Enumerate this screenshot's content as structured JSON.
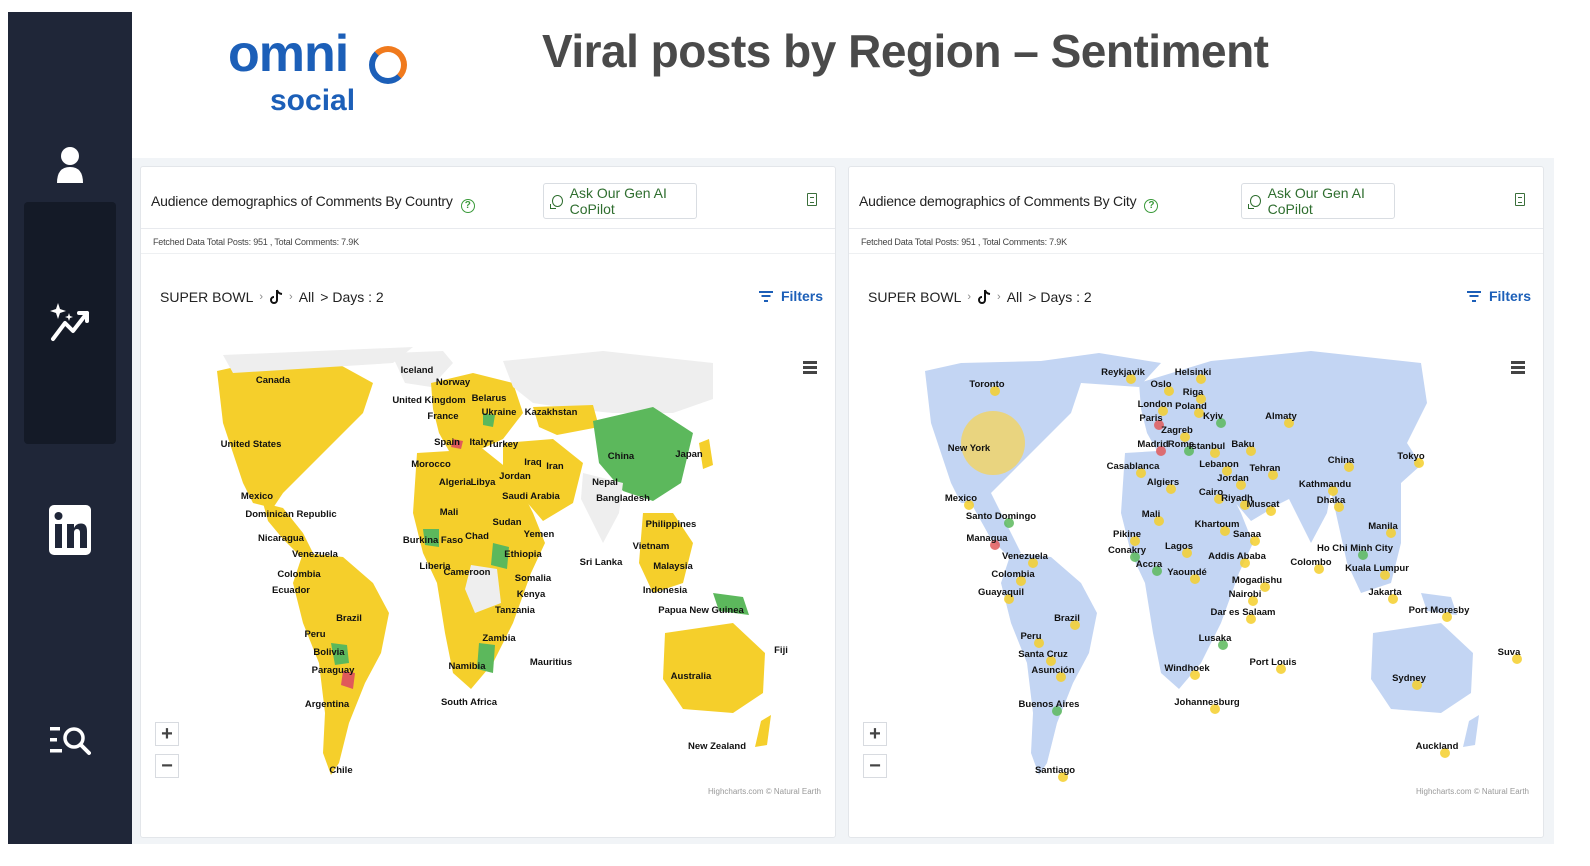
{
  "page": {
    "title": "Viral posts by Region – Sentiment",
    "logo_top": "omni",
    "logo_bottom": "social"
  },
  "sidebar": {
    "items": [
      {
        "name": "user",
        "icon": "user-icon"
      },
      {
        "name": "analytics",
        "icon": "sparkle-chart-icon",
        "active": true
      },
      {
        "name": "linkedin",
        "icon": "linkedin-icon"
      },
      {
        "name": "search-list",
        "icon": "list-search-icon"
      }
    ]
  },
  "colors": {
    "sidebar": "#1f2638",
    "positive": "#5cb85c",
    "neutral": "#f5cf2b",
    "negative": "#e05a5a",
    "no_data": "#eeeeee",
    "city_land": "#c3d5f3",
    "accent": "#1c5fb8"
  },
  "panels": {
    "country": {
      "title": "Audience demographics of Comments By Country",
      "copilot_label": "Ask Our Gen AI CoPilot",
      "fetched": "Fetched Data Total Posts: 951 , Total Comments: 7.9K",
      "crumb_event": "SUPER BOWL",
      "crumb_scope": "All",
      "crumb_days": "> Days : 2",
      "filters_label": "Filters",
      "zoom_in": "+",
      "zoom_out": "−",
      "credits": "Highcharts.com © Natural Earth",
      "labels": [
        "Canada",
        "Iceland",
        "Norway",
        "United Kingdom",
        "Belarus",
        "France",
        "Ukraine",
        "Kazakhstan",
        "United States",
        "Spain",
        "Italy",
        "Turkey",
        "China",
        "Japan",
        "Morocco",
        "Iraq",
        "Iran",
        "Algeria",
        "Libya",
        "Jordan",
        "Nepal",
        "Mexico",
        "Saudi Arabia",
        "Bangladesh",
        "Dominican Republic",
        "Mali",
        "Sudan",
        "Philippines",
        "Nicaragua",
        "Burkina Faso",
        "Chad",
        "Yemen",
        "Venezuela",
        "Vietnam",
        "Liberia",
        "Cameroon",
        "Ethiopia",
        "Sri Lanka",
        "Malaysia",
        "Colombia",
        "Somalia",
        "Ecuador",
        "Kenya",
        "Indonesia",
        "Tanzania",
        "Papua New Guinea",
        "Brazil",
        "Peru",
        "Zambia",
        "Bolivia",
        "Mauritius",
        "Fiji",
        "Namibia",
        "Paraguay",
        "Australia",
        "South Africa",
        "Argentina",
        "New Zealand",
        "Chile"
      ]
    },
    "city": {
      "title": "Audience demographics of Comments By City",
      "copilot_label": "Ask Our Gen AI CoPilot",
      "fetched": "Fetched Data Total Posts: 951 , Total Comments: 7.9K",
      "crumb_event": "SUPER BOWL",
      "crumb_scope": "All",
      "crumb_days": "> Days : 2",
      "filters_label": "Filters",
      "zoom_in": "+",
      "zoom_out": "−",
      "credits": "Highcharts.com © Natural Earth",
      "labels": [
        "Reykjavik",
        "Helsinki",
        "Toronto",
        "Oslo",
        "Riga",
        "London",
        "Poland",
        "Almaty",
        "Paris",
        "Kyiv",
        "Zagreb",
        "New York",
        "Madrid",
        "Rome",
        "Istanbul",
        "Baku",
        "China",
        "Tokyo",
        "Casablanca",
        "Lebanon",
        "Tehran",
        "Jordan",
        "Algiers",
        "Kathmandu",
        "Cairo",
        "Riyadh",
        "Dhaka",
        "Muscat",
        "Mexico",
        "Mali",
        "Santo Domingo",
        "Khartoum",
        "Manila",
        "Pikine",
        "Sanaa",
        "Managua",
        "Lagos",
        "Conakry",
        "Venezuela",
        "Addis Ababa",
        "Ho Chi Minh City",
        "Accra",
        "Yaoundé",
        "Colombo",
        "Kuala Lumpur",
        "Colombia",
        "Mogadishu",
        "Guayaquil",
        "Nairobi",
        "Jakarta",
        "Dar es Salaam",
        "Port Moresby",
        "Brazil",
        "Peru",
        "Lusaka",
        "Suva",
        "Santa Cruz",
        "Port Louis",
        "Windhoek",
        "Asunción",
        "Sydney",
        "Buenos Aires",
        "Johannesburg",
        "Auckland",
        "Santiago"
      ]
    }
  }
}
